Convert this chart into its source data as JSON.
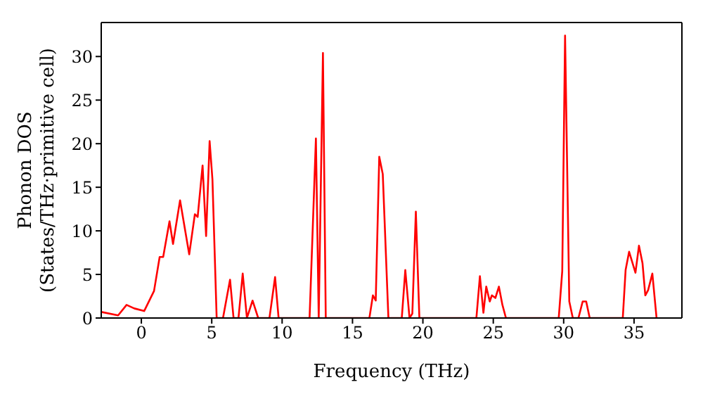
{
  "chart_data": {
    "type": "line",
    "xlabel": "Frequency (THz)",
    "ylabel": "Phonon DOS\n(States/THz·primitive cell)",
    "xlim": [
      -2.85,
      38.4
    ],
    "ylim": [
      0,
      33.9
    ],
    "xticks": [
      0,
      5,
      10,
      15,
      20,
      25,
      30,
      35
    ],
    "yticks": [
      0,
      5,
      10,
      15,
      20,
      25,
      30
    ],
    "grid": false,
    "legend": false,
    "marker": "none",
    "line_style": "solid",
    "series": [
      {
        "color": "#ff0000",
        "x": [
          -2.85,
          -1.65,
          -1.05,
          -0.5,
          0.2,
          0.9,
          1.3,
          1.55,
          2.0,
          2.25,
          2.75,
          3.4,
          3.8,
          4.0,
          4.35,
          4.6,
          4.85,
          5.05,
          5.35,
          5.8,
          6.3,
          6.55,
          6.9,
          7.2,
          7.5,
          7.9,
          8.3,
          9.1,
          9.5,
          9.75,
          11.95,
          12.4,
          12.6,
          12.9,
          13.1,
          16.2,
          16.45,
          16.65,
          16.9,
          17.15,
          17.55,
          18.5,
          18.75,
          19.05,
          19.25,
          19.5,
          19.75,
          23.8,
          24.05,
          24.3,
          24.5,
          24.75,
          24.9,
          25.15,
          25.4,
          25.65,
          25.9,
          29.65,
          29.9,
          30.1,
          30.4,
          30.65,
          31.05,
          31.35,
          31.6,
          31.85,
          34.2,
          34.4,
          34.65,
          35.1,
          35.35,
          35.6,
          35.8,
          36.0,
          36.3,
          36.6
        ],
        "values": [
          0.7,
          0.3,
          1.5,
          1.1,
          0.8,
          3.1,
          7.0,
          7.0,
          11.1,
          8.5,
          13.5,
          7.3,
          11.9,
          11.6,
          17.5,
          9.4,
          20.3,
          15.9,
          0,
          0,
          4.4,
          0,
          0,
          5.1,
          0,
          2.0,
          0,
          0,
          4.7,
          0,
          0,
          20.6,
          0,
          30.4,
          0,
          0,
          2.6,
          2.0,
          18.5,
          16.5,
          0,
          0,
          5.5,
          0,
          0.5,
          12.2,
          0,
          0,
          4.8,
          0.6,
          3.6,
          1.9,
          2.6,
          2.3,
          3.6,
          1.5,
          0,
          0,
          5.4,
          32.4,
          1.9,
          0,
          0,
          1.9,
          1.9,
          0,
          0,
          5.5,
          7.6,
          5.2,
          8.3,
          6.3,
          2.6,
          3.2,
          5.1,
          0
        ]
      }
    ]
  }
}
